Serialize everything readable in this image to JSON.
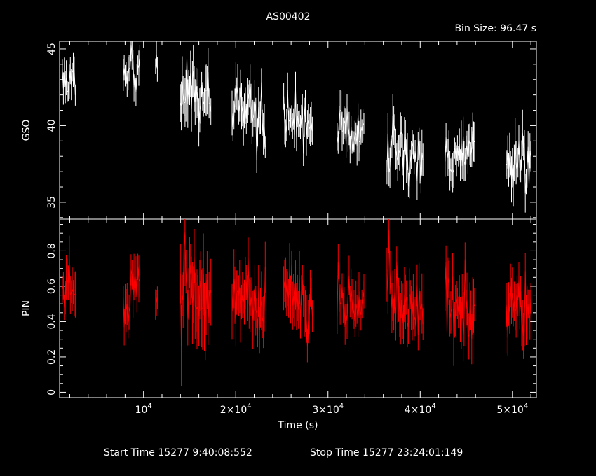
{
  "header": {
    "title": "AS00402",
    "bin_size": "Bin Size: 96.47 s"
  },
  "footer": {
    "start_time": "Start Time 15277  9:40:08:552",
    "stop_time": "Stop Time 15277 23:24:01:149"
  },
  "colors": {
    "gso": "#ffffff",
    "pin": "#ff0000",
    "axes": "#ffffff",
    "background": "#000000"
  },
  "chart_data": [
    {
      "type": "line",
      "ylabel": "GSO",
      "ylim": [
        33.9,
        45.5
      ],
      "xlim": [
        900,
        52600
      ],
      "yticks_labeled": [
        35,
        40,
        45
      ],
      "yticks_minor_step": 1,
      "color": "#ffffff",
      "segments": [
        {
          "x0": 1200,
          "x1": 2600,
          "n": 14,
          "base_start": 43.0,
          "base_end": 43.2,
          "sd": 0.7
        },
        {
          "x0": 7800,
          "x1": 9600,
          "n": 18,
          "base_start": 44.0,
          "base_end": 43.6,
          "sd": 0.7
        },
        {
          "x0": 11300,
          "x1": 11500,
          "n": 3,
          "base_start": 44.2,
          "base_end": 44.0,
          "sd": 0.6
        },
        {
          "x0": 14000,
          "x1": 17300,
          "n": 34,
          "base_start": 42.5,
          "base_end": 41.8,
          "sd": 1.0
        },
        {
          "x0": 19600,
          "x1": 23200,
          "n": 36,
          "base_start": 41.2,
          "base_end": 40.2,
          "sd": 0.9
        },
        {
          "x0": 25200,
          "x1": 28300,
          "n": 30,
          "base_start": 40.2,
          "base_end": 39.8,
          "sd": 0.8
        },
        {
          "x0": 31000,
          "x1": 33900,
          "n": 28,
          "base_start": 40.3,
          "base_end": 39.0,
          "sd": 0.8
        },
        {
          "x0": 36400,
          "x1": 40300,
          "n": 38,
          "base_start": 38.6,
          "base_end": 38.0,
          "sd": 0.9
        },
        {
          "x0": 42700,
          "x1": 45900,
          "n": 32,
          "base_start": 38.0,
          "base_end": 38.3,
          "sd": 0.8
        },
        {
          "x0": 49300,
          "x1": 52000,
          "n": 28,
          "base_start": 37.2,
          "base_end": 37.8,
          "sd": 0.9
        }
      ]
    },
    {
      "type": "line",
      "ylabel": "PIN",
      "xlabel": "Time (s)",
      "ylim": [
        -0.03,
        0.98
      ],
      "xlim": [
        900,
        52600
      ],
      "yticks_labeled": [
        0,
        0.2,
        0.4,
        0.6,
        0.8
      ],
      "yticks_minor_step": 0.05,
      "xticks_labeled": [
        10000,
        20000,
        30000,
        40000,
        50000
      ],
      "xticks_minor_step": 2000,
      "xtick_labels": [
        {
          "value": 10000,
          "mantissa": "",
          "exp": "4",
          "base": "10"
        },
        {
          "value": 20000,
          "mantissa": "2×",
          "exp": "4",
          "base": "10"
        },
        {
          "value": 30000,
          "mantissa": "3×",
          "exp": "4",
          "base": "10"
        },
        {
          "value": 40000,
          "mantissa": "4×",
          "exp": "4",
          "base": "10"
        },
        {
          "value": 50000,
          "mantissa": "5×",
          "exp": "4",
          "base": "10"
        }
      ],
      "color": "#ff0000",
      "segments": [
        {
          "x0": 1200,
          "x1": 2600,
          "n": 14,
          "base_start": 0.6,
          "base_end": 0.58,
          "sd": 0.08
        },
        {
          "x0": 7800,
          "x1": 9600,
          "n": 18,
          "base_start": 0.52,
          "base_end": 0.62,
          "sd": 0.08
        },
        {
          "x0": 11300,
          "x1": 11500,
          "n": 3,
          "base_start": 0.55,
          "base_end": 0.55,
          "sd": 0.07
        },
        {
          "x0": 14000,
          "x1": 17300,
          "n": 34,
          "base_start": 0.66,
          "base_end": 0.45,
          "sd": 0.14
        },
        {
          "x0": 19600,
          "x1": 23200,
          "n": 36,
          "base_start": 0.58,
          "base_end": 0.45,
          "sd": 0.1
        },
        {
          "x0": 25200,
          "x1": 28300,
          "n": 30,
          "base_start": 0.6,
          "base_end": 0.45,
          "sd": 0.09
        },
        {
          "x0": 31000,
          "x1": 33900,
          "n": 28,
          "base_start": 0.55,
          "base_end": 0.45,
          "sd": 0.08
        },
        {
          "x0": 36400,
          "x1": 40300,
          "n": 38,
          "base_start": 0.58,
          "base_end": 0.42,
          "sd": 0.1
        },
        {
          "x0": 42700,
          "x1": 45900,
          "n": 32,
          "base_start": 0.5,
          "base_end": 0.45,
          "sd": 0.1
        },
        {
          "x0": 49300,
          "x1": 52000,
          "n": 28,
          "base_start": 0.45,
          "base_end": 0.45,
          "sd": 0.09
        }
      ]
    }
  ]
}
